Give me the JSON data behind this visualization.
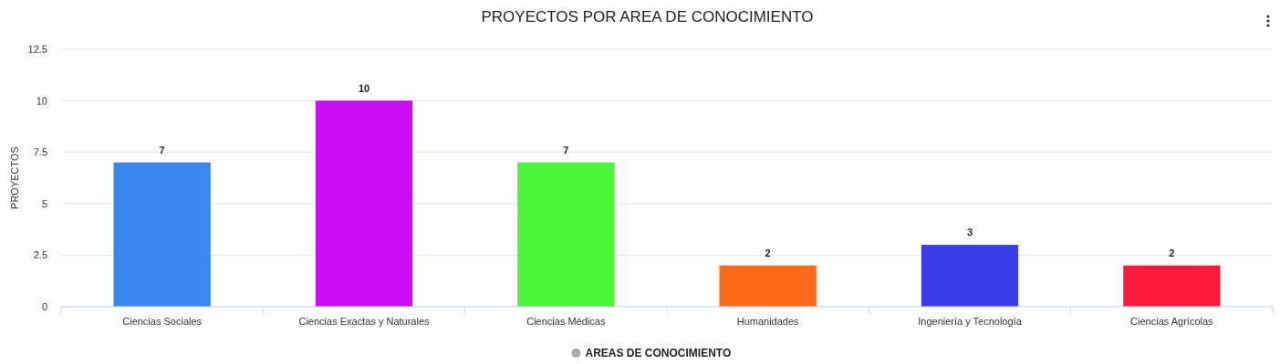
{
  "chart_data": {
    "type": "bar",
    "title": "PROYECTOS POR AREA DE CONOCIMIENTO",
    "ylabel": "PROYECTOS",
    "categories": [
      "Ciencias Sociales",
      "Ciencias Exactas y Naturales",
      "Ciencias Médicas",
      "Humanidades",
      "Ingeniería y Tecnología",
      "Ciencias Agrícolas"
    ],
    "series": [
      {
        "name": "AREAS DE CONOCIMIENTO",
        "color": "#aaaaaa",
        "colors": [
          "#3a87f0",
          "#cc0ef5",
          "#4cf53a",
          "#ff6a1a",
          "#3b3de8",
          "#ff1a3a"
        ],
        "values": [
          7,
          10,
          7,
          2,
          3,
          2
        ]
      }
    ],
    "ylim": [
      0,
      12.5
    ],
    "yticks": [
      0,
      2.5,
      5,
      7.5,
      10,
      12.5
    ],
    "grid": "y",
    "legend": "bottom",
    "data_labels": true
  }
}
